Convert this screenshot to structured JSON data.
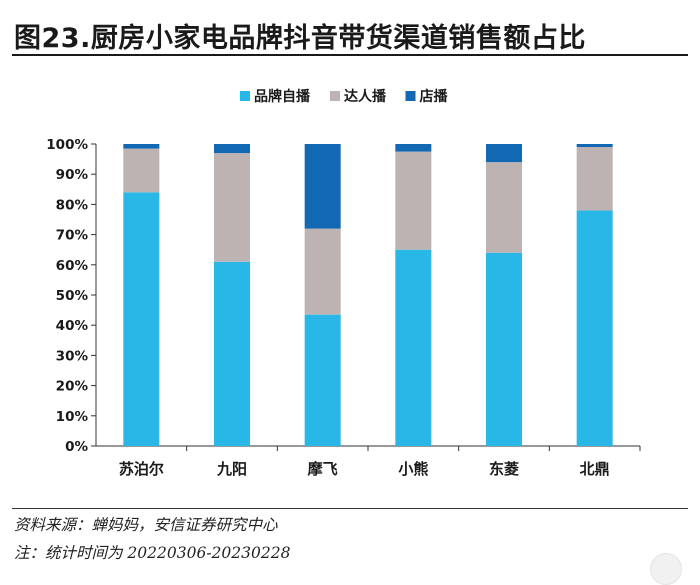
{
  "header": {
    "title": "图23.厨房小家电品牌抖音带货渠道销售额占比"
  },
  "footer": {
    "source": "资料来源：蝉妈妈，安信证券研究中心",
    "period": "注：统计时间为 20220306-20230228"
  },
  "chart_data": {
    "type": "bar",
    "stacked": true,
    "categories": [
      "苏泊尔",
      "九阳",
      "摩飞",
      "小熊",
      "东菱",
      "北鼎"
    ],
    "series": [
      {
        "name": "品牌自播",
        "color": "#29b7e8",
        "values": [
          84,
          61,
          43.5,
          65,
          64,
          78
        ]
      },
      {
        "name": "达人播",
        "color": "#bdb3b3",
        "values": [
          14.5,
          36,
          28.5,
          32.5,
          30,
          21
        ]
      },
      {
        "name": "店播",
        "color": "#1268b3",
        "values": [
          1.5,
          3,
          28,
          2.5,
          6,
          1
        ]
      }
    ],
    "ylim": [
      0,
      100
    ],
    "yticks": [
      0,
      10,
      20,
      30,
      40,
      50,
      60,
      70,
      80,
      90,
      100
    ],
    "ytick_labels": [
      "0%",
      "10%",
      "20%",
      "30%",
      "40%",
      "50%",
      "60%",
      "70%",
      "80%",
      "90%",
      "100%"
    ],
    "grid": false,
    "legend_position": "top"
  }
}
